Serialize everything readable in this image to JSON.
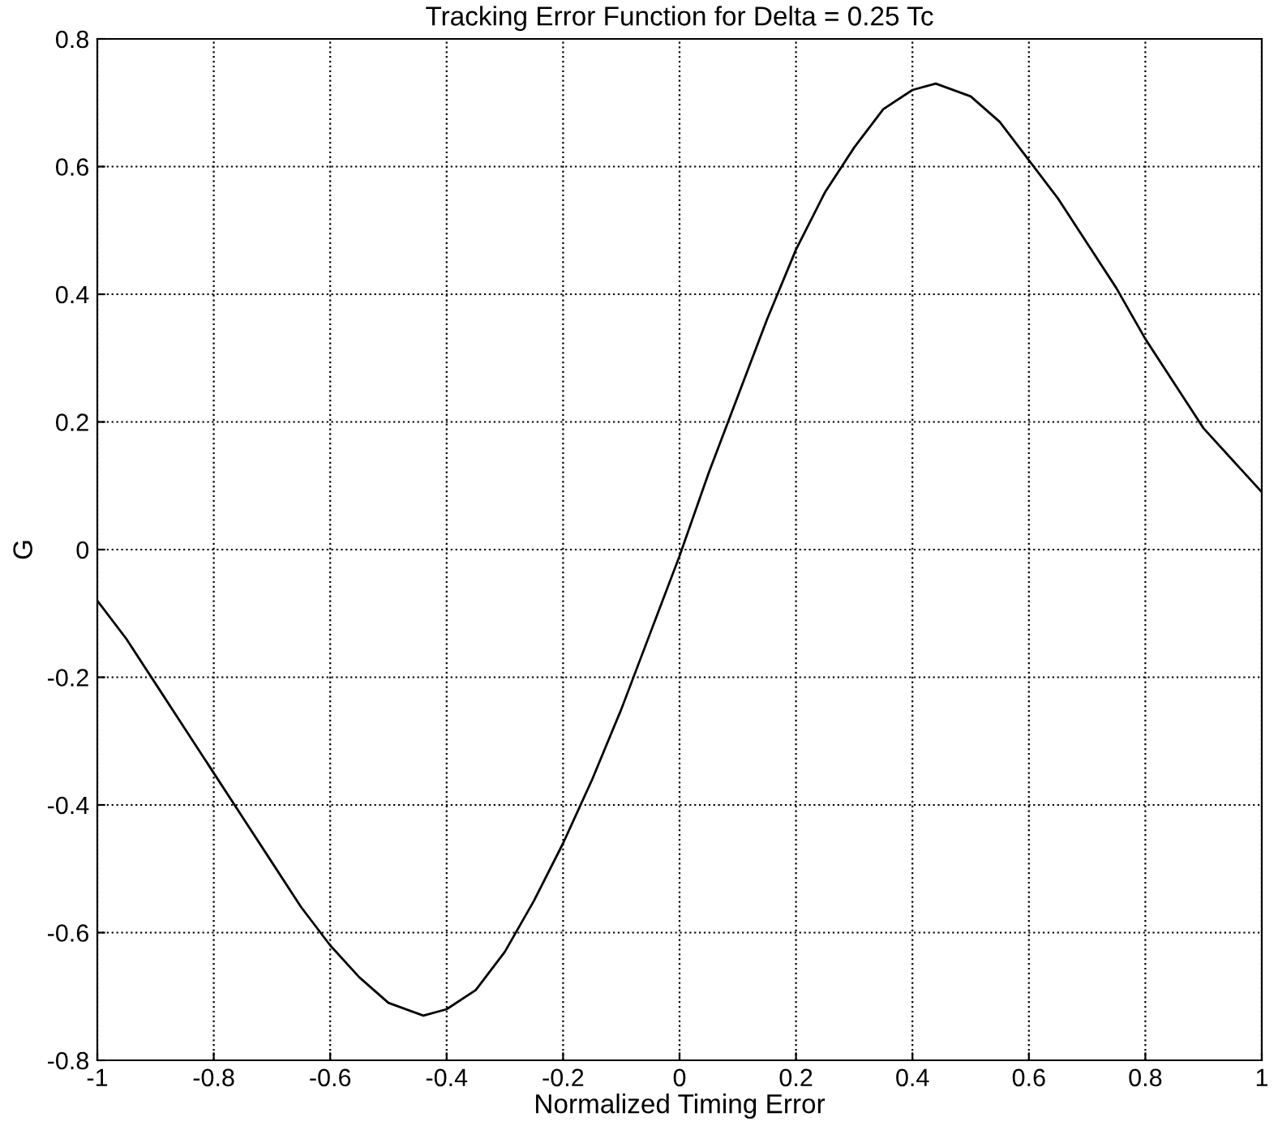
{
  "chart_data": {
    "type": "line",
    "title": "Tracking Error Function for Delta = 0.25 Tc",
    "xlabel": "Normalized Timing Error",
    "ylabel": "G",
    "series": [
      {
        "color": "#000000",
        "x": [
          -1,
          -0.95,
          -0.9,
          -0.85,
          -0.8,
          -0.75,
          -0.7,
          -0.65,
          -0.6,
          -0.55,
          -0.5,
          -0.44,
          -0.4,
          -0.35,
          -0.3,
          -0.25,
          -0.2,
          -0.15,
          -0.1,
          -0.05,
          0,
          0.05,
          0.1,
          0.15,
          0.2,
          0.25,
          0.3,
          0.35,
          0.4,
          0.44,
          0.5,
          0.55,
          0.6,
          0.65,
          0.7,
          0.75,
          0.8,
          0.85,
          0.9,
          0.95,
          1
        ],
        "values": [
          -0.08,
          -0.14,
          -0.21,
          -0.28,
          -0.35,
          -0.42,
          -0.49,
          -0.56,
          -0.62,
          -0.67,
          -0.71,
          -0.73,
          -0.72,
          -0.69,
          -0.63,
          -0.55,
          -0.46,
          -0.36,
          -0.25,
          -0.13,
          -0.01,
          0.12,
          0.24,
          0.36,
          0.47,
          0.56,
          0.63,
          0.69,
          0.72,
          0.73,
          0.71,
          0.67,
          0.61,
          0.55,
          0.48,
          0.41,
          0.33,
          0.26,
          0.19,
          0.14,
          0.09
        ]
      }
    ],
    "xlim": [
      -1,
      1
    ],
    "xticks": [
      -1,
      -0.8,
      -0.6,
      -0.4,
      -0.2,
      0,
      0.2,
      0.4,
      0.6,
      0.8,
      1
    ],
    "ylim": [
      -0.8,
      0.8
    ],
    "yticks": [
      -0.8,
      -0.6,
      -0.4,
      -0.2,
      0,
      0.2,
      0.4,
      0.6,
      0.8
    ],
    "grid": true,
    "line_style": "solid",
    "marker": "none",
    "legend": false
  }
}
